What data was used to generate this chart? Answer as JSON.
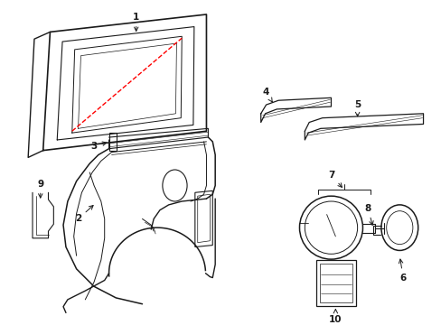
{
  "background_color": "#ffffff",
  "line_color": "#1a1a1a",
  "red_dashed_color": "#ff0000",
  "label_color": "#000000",
  "fs": 7.5
}
